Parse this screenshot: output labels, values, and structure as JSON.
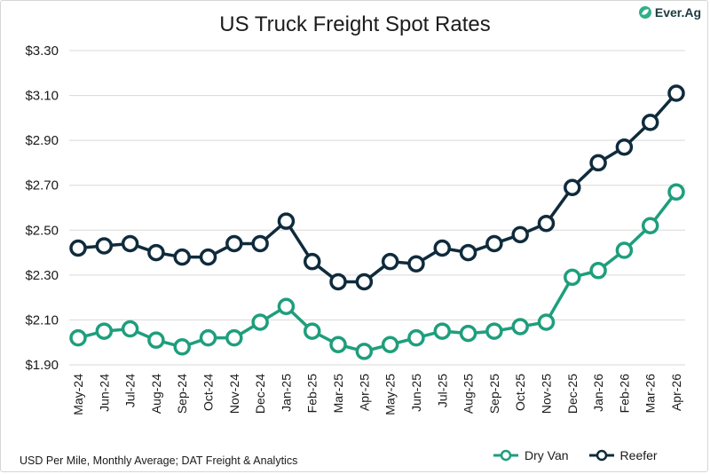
{
  "brand": {
    "logo_text": "Ever.Ag"
  },
  "footnote": "USD Per Mile, Monthly Average; DAT Freight & Analytics",
  "colors": {
    "dry_van": "#1e9e7c",
    "reefer": "#0f2b3c",
    "grid": "#d9d9d9"
  },
  "chart_data": {
    "type": "line",
    "title": "US Truck Freight Spot Rates",
    "xlabel": "",
    "ylabel": "",
    "ylim": [
      1.9,
      3.3
    ],
    "yticks": [
      "$1.90",
      "$2.10",
      "$2.30",
      "$2.50",
      "$2.70",
      "$2.90",
      "$3.10",
      "$3.30"
    ],
    "grid": true,
    "legend_placement": "bottom-right",
    "categories": [
      "May-24",
      "Jun-24",
      "Jul-24",
      "Aug-24",
      "Sep-24",
      "Oct-24",
      "Nov-24",
      "Dec-24",
      "Jan-25",
      "Feb-25",
      "Mar-25",
      "Apr-25",
      "May-25",
      "Jun-25",
      "Jul-25",
      "Aug-25",
      "Sep-25",
      "Oct-25",
      "Nov-25",
      "Dec-25",
      "Jan-26",
      "Feb-26",
      "Mar-26",
      "Apr-26"
    ],
    "series": [
      {
        "name": "Dry Van",
        "color": "#1e9e7c",
        "values": [
          2.02,
          2.05,
          2.06,
          2.01,
          1.98,
          2.02,
          2.02,
          2.09,
          2.16,
          2.05,
          1.99,
          1.96,
          1.99,
          2.02,
          2.05,
          2.04,
          2.05,
          2.07,
          2.09,
          2.29,
          2.32,
          2.41,
          2.52,
          2.67
        ]
      },
      {
        "name": "Reefer",
        "color": "#0f2b3c",
        "values": [
          2.42,
          2.43,
          2.44,
          2.4,
          2.38,
          2.38,
          2.44,
          2.44,
          2.54,
          2.36,
          2.27,
          2.27,
          2.36,
          2.35,
          2.42,
          2.4,
          2.44,
          2.48,
          2.53,
          2.69,
          2.8,
          2.87,
          2.98,
          3.11
        ]
      }
    ]
  }
}
